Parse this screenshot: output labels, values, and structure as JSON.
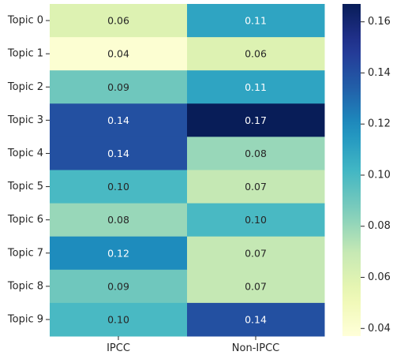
{
  "chart_data": {
    "type": "heatmap",
    "title": "",
    "xlabel": "",
    "ylabel": "",
    "x_categories": [
      "IPCC",
      "Non-IPCC"
    ],
    "y_categories": [
      "Topic 0",
      "Topic 1",
      "Topic 2",
      "Topic 3",
      "Topic 4",
      "Topic 5",
      "Topic 6",
      "Topic 7",
      "Topic 8",
      "Topic 9"
    ],
    "values": [
      [
        0.06,
        0.11
      ],
      [
        0.04,
        0.06
      ],
      [
        0.09,
        0.11
      ],
      [
        0.14,
        0.17
      ],
      [
        0.14,
        0.08
      ],
      [
        0.1,
        0.07
      ],
      [
        0.08,
        0.1
      ],
      [
        0.12,
        0.07
      ],
      [
        0.09,
        0.07
      ],
      [
        0.1,
        0.14
      ]
    ],
    "value_labels": [
      [
        "0.06",
        "0.11"
      ],
      [
        "0.04",
        "0.06"
      ],
      [
        "0.09",
        "0.11"
      ],
      [
        "0.14",
        "0.17"
      ],
      [
        "0.14",
        "0.08"
      ],
      [
        "0.10",
        "0.07"
      ],
      [
        "0.08",
        "0.10"
      ],
      [
        "0.12",
        "0.07"
      ],
      [
        "0.09",
        "0.07"
      ],
      [
        "0.10",
        "0.14"
      ]
    ],
    "colormap": "YlGnBu",
    "color_range": [
      0.037,
      0.167
    ],
    "colorbar": {
      "ticks": [
        0.04,
        0.06,
        0.08,
        0.1,
        0.12,
        0.14,
        0.16
      ],
      "tick_labels": [
        "0.04",
        "0.06",
        "0.08",
        "0.10",
        "0.12",
        "0.14",
        "0.16"
      ],
      "placement": "right"
    },
    "grid": false
  }
}
